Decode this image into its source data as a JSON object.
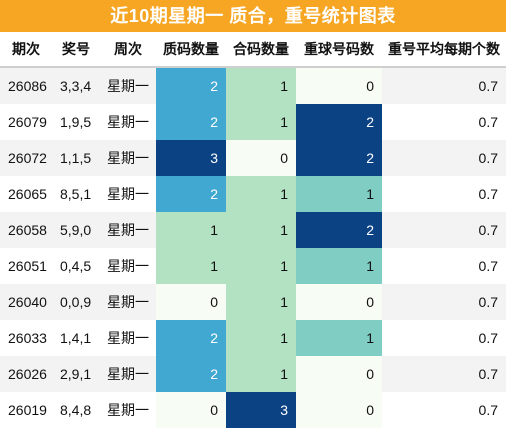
{
  "title": "近10期星期一 质合，重号统计图表",
  "headers": [
    "期次",
    "奖号",
    "周次",
    "质码数量",
    "合码数量",
    "重球号码数",
    "重号平均每期个数"
  ],
  "colors": {
    "title_bg": "#f6a623",
    "level_0": "#f7fcf5",
    "level_1_light": "#b3e2c3",
    "level_1_teal": "#7fcdc3",
    "level_2": "#41a8d2",
    "level_3": "#0b4284"
  },
  "rows": [
    {
      "issue": "26086",
      "award": "3,3,4",
      "week": "星期一",
      "prime": "2",
      "composite": "1",
      "repeat": "0",
      "avg": "0.7"
    },
    {
      "issue": "26079",
      "award": "1,9,5",
      "week": "星期一",
      "prime": "2",
      "composite": "1",
      "repeat": "2",
      "avg": "0.7"
    },
    {
      "issue": "26072",
      "award": "1,1,5",
      "week": "星期一",
      "prime": "3",
      "composite": "0",
      "repeat": "2",
      "avg": "0.7"
    },
    {
      "issue": "26065",
      "award": "8,5,1",
      "week": "星期一",
      "prime": "2",
      "composite": "1",
      "repeat": "1",
      "avg": "0.7"
    },
    {
      "issue": "26058",
      "award": "5,9,0",
      "week": "星期一",
      "prime": "1",
      "composite": "1",
      "repeat": "2",
      "avg": "0.7"
    },
    {
      "issue": "26051",
      "award": "0,4,5",
      "week": "星期一",
      "prime": "1",
      "composite": "1",
      "repeat": "1",
      "avg": "0.7"
    },
    {
      "issue": "26040",
      "award": "0,0,9",
      "week": "星期一",
      "prime": "0",
      "composite": "1",
      "repeat": "0",
      "avg": "0.7"
    },
    {
      "issue": "26033",
      "award": "1,4,1",
      "week": "星期一",
      "prime": "2",
      "composite": "1",
      "repeat": "1",
      "avg": "0.7"
    },
    {
      "issue": "26026",
      "award": "2,9,1",
      "week": "星期一",
      "prime": "2",
      "composite": "1",
      "repeat": "0",
      "avg": "0.7"
    },
    {
      "issue": "26019",
      "award": "8,4,8",
      "week": "星期一",
      "prime": "0",
      "composite": "3",
      "repeat": "0",
      "avg": "0.7"
    }
  ]
}
